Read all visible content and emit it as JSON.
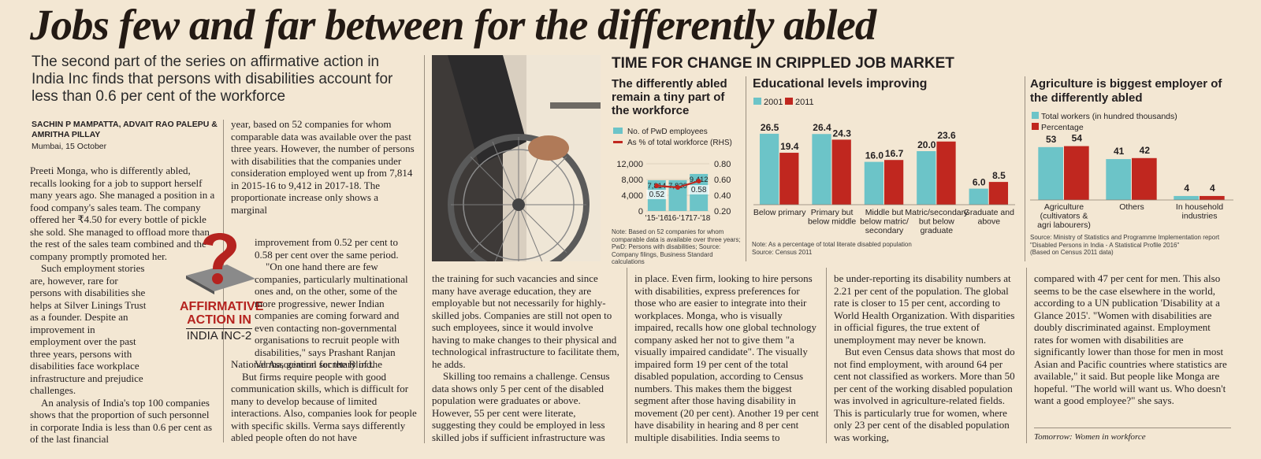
{
  "headline": "Jobs few and far between for the differently abled",
  "deck": "The second part of the series on affirmative action in India Inc finds that persons with disabilities account for less than 0.6 per cent of the workforce",
  "byline": {
    "authors": "SACHIN P MAMPATTA, ADVAIT RAO PALEPU & AMRITHA PILLAY",
    "dateline": "Mumbai, 15 October"
  },
  "badge": {
    "line1": "AFFIRMATIVE",
    "line2": "ACTION IN",
    "line3": "INDIA INC-2"
  },
  "article": {
    "col1": [
      "Preeti Monga, who is differently abled, recalls looking for a job to support herself many years ago. She managed a position in a food company's sales team. The company offered her ₹4.50 for every bottle of pickle she sold. She managed to offload more than the rest of the sales team combined and the company promptly promoted her.",
      "Such employment stories are, however, rare for persons with disabilities she helps at Silver Linings Trust as a founder. Despite an improvement in employment over the past three years, persons with disabilities face workplace infrastructure and prejudice challenges.",
      "An analysis of India's top 100 companies shows that the proportion of such personnel in corporate India is less than 0.6 per cent as of the last financial"
    ],
    "col2a": "year, based on 52 companies for whom comparable data was available over the past three years. However, the number of persons with disabilities that the companies under consideration employed went up from 7,814 in 2015-16 to 9,412 in 2017-18. The proportionate increase only shows a marginal",
    "col2b": [
      "improvement from 0.52 per cent to 0.58 per cent over the same period.",
      "\"On one hand there are few companies, particularly multinational ones and, on the other, some of the more progressive, newer Indian companies are coming forward and even contacting non-governmental organisations to recruit people with disabilities,\" says Prashant Ranjan Verma, general secretary of the"
    ],
    "col2c": [
      "National Association for the Blind.",
      "But firms require people with good communication skills, which is difficult for many to develop because of limited interactions. Also, companies look for people with specific skills. Verma says differently abled people often do not have"
    ],
    "col3": [
      "the training for such vacancies and since many have average education, they are employable but not necessarily for highly-skilled jobs. Companies are still not open to such employees, since it would involve having to make changes to their physical and technological infrastructure to facilitate them, he adds.",
      "Skilling too remains a challenge. Census data shows only 5 per cent of the disabled population were graduates or above. However, 55 per cent were literate, suggesting they could be employed in less skilled jobs if sufficient infrastructure was"
    ],
    "col4": [
      "in place. Even firm, looking to hire persons with disabilities, express preferences for those who are easier to integrate into their workplaces. Monga, who is visually impaired, recalls how one global technology company asked her not to give them \"a visually impaired candidate\". The visually impaired form 19 per cent of the total disabled population, according to Census numbers. This makes them the biggest segment after those having disability in movement (20 per cent). Another 19 per cent have disability in hearing and 8 per cent multiple disabilities. India seems to"
    ],
    "col5": [
      "be under-reporting its disability numbers at 2.21 per cent of the population. The global rate is closer to 15 per cent, according to World Health Organization. With disparities in official figures, the true extent of unemployment may never be known.",
      "But even Census data shows that most do not find employment, with around 64 per cent not classified as workers. More than 50 per cent of the working disabled population was involved in agriculture-related fields. This is particularly true for women, where only 23 per cent of the disabled population was working,"
    ],
    "col6": [
      "compared with 47 per cent for men. This also seems to be the case elsewhere in the world, according to a UN publication 'Disability at a Glance 2015'. \"Women with disabilities are doubly discriminated against. Employment rates for women with disabilities are significantly lower than those for men in most Asian and Pacific countries where statistics are available,\" it said. But people like Monga are hopeful. \"The world will want us. Who doesn't want a good employee?\" she says."
    ],
    "tomorrow": "Tomorrow: Women in workforce"
  },
  "graphic": {
    "banner": "TIME FOR CHANGE IN CRIPPLED JOB MARKET",
    "notes1": [
      "Note: Based on 52 companies for whom",
      "comparable data is available over three years;",
      "PwD: Persons with disabilities; Source:",
      "Company filings, Business Standard calculations"
    ],
    "notes2": [
      "Note: As a percentage of total literate disabled population",
      "Source: Census 2011"
    ],
    "notes3": [
      "Source: Ministry of Statistics and Programme Implementation report",
      "\"Disabled Persons in India - A Statistical Profile 2016\"",
      "(Based on Census 2011 data)"
    ]
  },
  "chart_data": [
    {
      "type": "bar",
      "title": "The differently abled remain a tiny part of the workforce",
      "legend": [
        "No. of PwD employees",
        "As % of total workforce (RHS)"
      ],
      "categories": [
        "'15-'16",
        "'16-'17",
        "'17-'18"
      ],
      "series": [
        {
          "name": "No. of PwD employees",
          "values": [
            7814,
            7820,
            9412
          ],
          "labels": [
            "7,814",
            "7,820",
            "9,412"
          ]
        },
        {
          "name": "As % of total workforce (RHS)",
          "values": [
            0.52,
            0.5,
            0.58
          ],
          "labels": [
            "0.52",
            "",
            "0.58"
          ]
        }
      ],
      "ylim": [
        0,
        12000
      ],
      "yticks": [
        "12,000",
        "8,000",
        "4,000",
        "0"
      ],
      "y2lim": [
        0.2,
        0.8
      ],
      "y2ticks": [
        "0.80",
        "0.60",
        "0.40",
        "0.20"
      ]
    },
    {
      "type": "bar",
      "title": "Educational levels improving",
      "legend": [
        "2001",
        "2011"
      ],
      "categories": [
        "Below primary",
        "Primary but below middle",
        "Middle but below matric/ secondary",
        "Matric/secondary but below graduate",
        "Graduate and above"
      ],
      "series": [
        {
          "name": "2001",
          "values": [
            26.5,
            26.4,
            16.0,
            20.0,
            6.0
          ],
          "labels": [
            "26.5",
            "26.4",
            "16.0",
            "20.0",
            "6.0"
          ]
        },
        {
          "name": "2011",
          "values": [
            19.4,
            24.3,
            16.7,
            23.6,
            8.5
          ],
          "labels": [
            "19.4",
            "24.3",
            "16.7",
            "23.6",
            "8.5"
          ]
        }
      ],
      "ylim": [
        0,
        30
      ]
    },
    {
      "type": "bar",
      "title": "Agriculture is biggest employer of the differently abled",
      "legend": [
        "Total workers (in hundred thousands)",
        "Percentage"
      ],
      "categories": [
        "Agriculture (cultivators & agri labourers)",
        "Others",
        "In household industries"
      ],
      "series": [
        {
          "name": "Total workers (in hundred thousands)",
          "values": [
            53,
            41,
            4
          ],
          "labels": [
            "53",
            "41",
            "4"
          ]
        },
        {
          "name": "Percentage",
          "values": [
            54,
            42,
            4
          ],
          "labels": [
            "54",
            "42",
            "4"
          ]
        }
      ],
      "ylim": [
        0,
        60
      ]
    }
  ],
  "colors": {
    "teal": "#6cc4c8",
    "red": "#c0271f",
    "badge": "#b5231f"
  }
}
